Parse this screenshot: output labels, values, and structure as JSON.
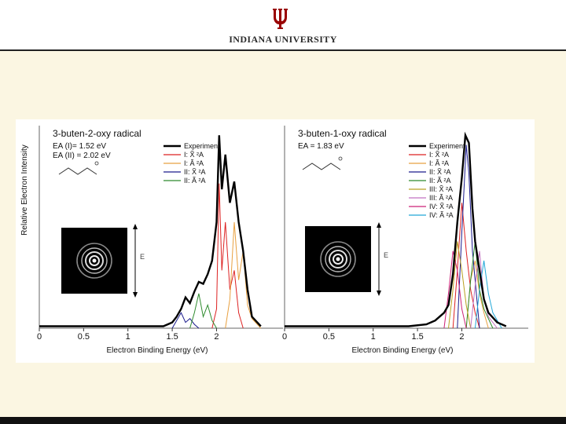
{
  "brand": {
    "name": "INDIANA UNIVERSITY",
    "logo_icon": "trident-logo-icon",
    "crimson": "#990000"
  },
  "ylabel": "Relative Electron Intensity",
  "chart_data": [
    {
      "type": "line",
      "title": "3-buten-2-oxy radical",
      "ea_lines": [
        "EA (I)= 1.52 eV",
        "EA (II) = 2.02 eV"
      ],
      "xlabel": "Electron Binding Energy (eV)",
      "ylabel": "Relative Electron Intensity",
      "xlim": [
        0,
        2.75
      ],
      "ylim": [
        0,
        1.05
      ],
      "xticks": [
        "0",
        "0.5",
        "1",
        "1.5",
        "2"
      ],
      "xtick_values": [
        0,
        0.5,
        1,
        1.5,
        2
      ],
      "image_annotation": "E",
      "legend": [
        {
          "label": "Experiment",
          "color": "#000000"
        },
        {
          "label": "I: X̃ ²A",
          "color": "#dd2222"
        },
        {
          "label": "I: Ã ²A",
          "color": "#e8a040"
        },
        {
          "label": "II: X̃ ²A",
          "color": "#1a1a8c"
        },
        {
          "label": "II: Ã ²A",
          "color": "#2e8b2e"
        }
      ],
      "series": [
        {
          "name": "Experiment",
          "color": "#000000",
          "x": [
            0,
            0.5,
            1.0,
            1.4,
            1.5,
            1.55,
            1.6,
            1.65,
            1.7,
            1.75,
            1.8,
            1.85,
            1.9,
            1.95,
            2.0,
            2.03,
            2.06,
            2.1,
            2.15,
            2.2,
            2.25,
            2.3,
            2.35,
            2.4,
            2.5
          ],
          "y": [
            0.01,
            0.01,
            0.01,
            0.01,
            0.03,
            0.06,
            0.1,
            0.16,
            0.13,
            0.19,
            0.24,
            0.23,
            0.28,
            0.35,
            0.55,
            1.0,
            0.72,
            0.9,
            0.65,
            0.76,
            0.55,
            0.4,
            0.2,
            0.06,
            0.01
          ]
        },
        {
          "name": "I: X̃ ²A",
          "color": "#dd2222",
          "x": [
            1.95,
            2.0,
            2.03,
            2.06,
            2.1,
            2.15,
            2.2,
            2.25,
            2.3
          ],
          "y": [
            0.0,
            0.1,
            0.75,
            0.3,
            0.55,
            0.2,
            0.3,
            0.08,
            0.0
          ]
        },
        {
          "name": "I: Ã ²A",
          "color": "#e8a040",
          "x": [
            2.1,
            2.15,
            2.2,
            2.25,
            2.3,
            2.35,
            2.4,
            2.5
          ],
          "y": [
            0.0,
            0.15,
            0.55,
            0.25,
            0.4,
            0.12,
            0.05,
            0.0
          ]
        },
        {
          "name": "II: X̃ ²A",
          "color": "#1a1a8c",
          "x": [
            1.5,
            1.55,
            1.6,
            1.65,
            1.7,
            1.75,
            1.8
          ],
          "y": [
            0.0,
            0.04,
            0.08,
            0.03,
            0.05,
            0.02,
            0.0
          ]
        },
        {
          "name": "II: Ã ²A",
          "color": "#2e8b2e",
          "x": [
            1.7,
            1.75,
            1.8,
            1.85,
            1.9,
            1.95,
            2.0
          ],
          "y": [
            0.0,
            0.08,
            0.18,
            0.06,
            0.12,
            0.04,
            0.0
          ]
        }
      ]
    },
    {
      "type": "line",
      "title": "3-buten-1-oxy radical",
      "ea_lines": [
        "EA = 1.83 eV"
      ],
      "xlabel": "Electron Binding Energy (eV)",
      "xlim": [
        0,
        2.75
      ],
      "ylim": [
        0,
        1.05
      ],
      "xticks": [
        "0",
        "0.5",
        "1",
        "1.5",
        "2"
      ],
      "xtick_values": [
        0,
        0.5,
        1,
        1.5,
        2
      ],
      "image_annotation": "E",
      "legend": [
        {
          "label": "Experiment",
          "color": "#000000"
        },
        {
          "label": "I: X̃ ²A",
          "color": "#dd2222"
        },
        {
          "label": "I: Ã ²A",
          "color": "#e8a040"
        },
        {
          "label": "II: X̃ ²A",
          "color": "#1a1a8c"
        },
        {
          "label": "II: Ã ²A",
          "color": "#2e8b2e"
        },
        {
          "label": "III: X̃ ²A",
          "color": "#b8a020"
        },
        {
          "label": "III: Ã ²A",
          "color": "#c070c0"
        },
        {
          "label": "IV: X̃ ²A",
          "color": "#cc2277"
        },
        {
          "label": "IV: Ã ²A",
          "color": "#22a8d8"
        }
      ],
      "series": [
        {
          "name": "Experiment",
          "color": "#000000",
          "x": [
            0,
            0.5,
            1.0,
            1.4,
            1.6,
            1.7,
            1.8,
            1.85,
            1.9,
            1.95,
            2.0,
            2.04,
            2.08,
            2.12,
            2.15,
            2.2,
            2.25,
            2.3,
            2.4,
            2.5
          ],
          "y": [
            0.01,
            0.01,
            0.01,
            0.01,
            0.02,
            0.04,
            0.08,
            0.12,
            0.28,
            0.55,
            0.78,
            1.0,
            0.96,
            0.62,
            0.45,
            0.3,
            0.15,
            0.08,
            0.03,
            0.01
          ]
        },
        {
          "name": "I: X̃ ²A",
          "color": "#dd2222",
          "x": [
            1.9,
            1.95,
            2.0,
            2.05,
            2.1,
            2.15,
            2.2
          ],
          "y": [
            0.0,
            0.3,
            0.65,
            0.4,
            0.2,
            0.08,
            0.0
          ]
        },
        {
          "name": "I: Ã ²A",
          "color": "#e8a040",
          "x": [
            2.05,
            2.1,
            2.15,
            2.2,
            2.25,
            2.3
          ],
          "y": [
            0.0,
            0.25,
            0.35,
            0.18,
            0.08,
            0.0
          ]
        },
        {
          "name": "II: X̃ ²A",
          "color": "#1a1a8c",
          "x": [
            1.95,
            2.0,
            2.05,
            2.08,
            2.12,
            2.2
          ],
          "y": [
            0.0,
            0.5,
            0.95,
            0.8,
            0.4,
            0.0
          ]
        },
        {
          "name": "II: Ã ²A",
          "color": "#2e8b2e",
          "x": [
            2.05,
            2.1,
            2.15,
            2.2,
            2.25,
            2.35
          ],
          "y": [
            0.0,
            0.25,
            0.45,
            0.2,
            0.1,
            0.0
          ]
        },
        {
          "name": "III: X̃ ²A",
          "color": "#b8a020",
          "x": [
            1.85,
            1.9,
            1.95,
            2.0,
            2.05,
            2.1
          ],
          "y": [
            0.0,
            0.2,
            0.45,
            0.3,
            0.12,
            0.0
          ]
        },
        {
          "name": "III: Ã ²A",
          "color": "#c070c0",
          "x": [
            2.1,
            2.15,
            2.2,
            2.25,
            2.3,
            2.4
          ],
          "y": [
            0.0,
            0.22,
            0.4,
            0.15,
            0.06,
            0.0
          ]
        },
        {
          "name": "IV: X̃ ²A",
          "color": "#cc2277",
          "x": [
            1.8,
            1.85,
            1.9,
            1.95,
            2.0,
            2.05
          ],
          "y": [
            0.0,
            0.18,
            0.4,
            0.3,
            0.1,
            0.0
          ]
        },
        {
          "name": "IV: Ã ²A",
          "color": "#22a8d8",
          "x": [
            2.15,
            2.2,
            2.25,
            2.3,
            2.35,
            2.45
          ],
          "y": [
            0.0,
            0.2,
            0.35,
            0.18,
            0.08,
            0.0
          ]
        }
      ]
    }
  ]
}
